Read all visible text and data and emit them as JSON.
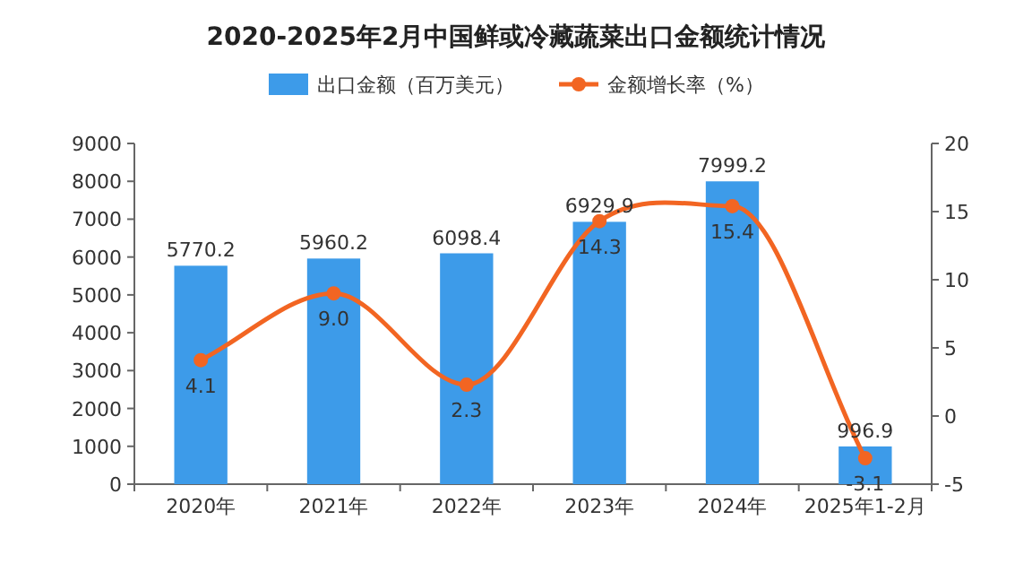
{
  "chart_data": {
    "type": "bar",
    "title": "2020-2025年2月中国鲜或冷藏蔬菜出口金额统计情况",
    "categories": [
      "2020年",
      "2021年",
      "2022年",
      "2023年",
      "2024年",
      "2025年1-2月"
    ],
    "series": [
      {
        "name": "出口金额（百万美元）",
        "color": "#3d9be9",
        "values": [
          5770.2,
          5960.2,
          6098.4,
          6929.9,
          7999.2,
          996.9
        ],
        "value_labels": [
          "5770.2",
          "5960.2",
          "6098.4",
          "6929.9",
          "7999.2",
          "996.9"
        ]
      },
      {
        "name": "金额增长率（%）",
        "type": "line",
        "axis": "y2",
        "color": "#f26522",
        "marker": "circle",
        "values": [
          4.1,
          9.0,
          2.3,
          14.3,
          15.4,
          -3.1
        ],
        "value_labels": [
          "4.1",
          "9.0",
          "2.3",
          "14.3",
          "15.4",
          "-3.1"
        ]
      }
    ],
    "ylim": [
      0,
      9000
    ],
    "yticks": [
      0,
      1000,
      2000,
      3000,
      4000,
      5000,
      6000,
      7000,
      8000,
      9000
    ],
    "y2lim": [
      -5,
      20
    ],
    "y2ticks": [
      -5,
      0,
      5,
      10,
      15,
      20
    ],
    "legend": "top",
    "grid": false
  }
}
